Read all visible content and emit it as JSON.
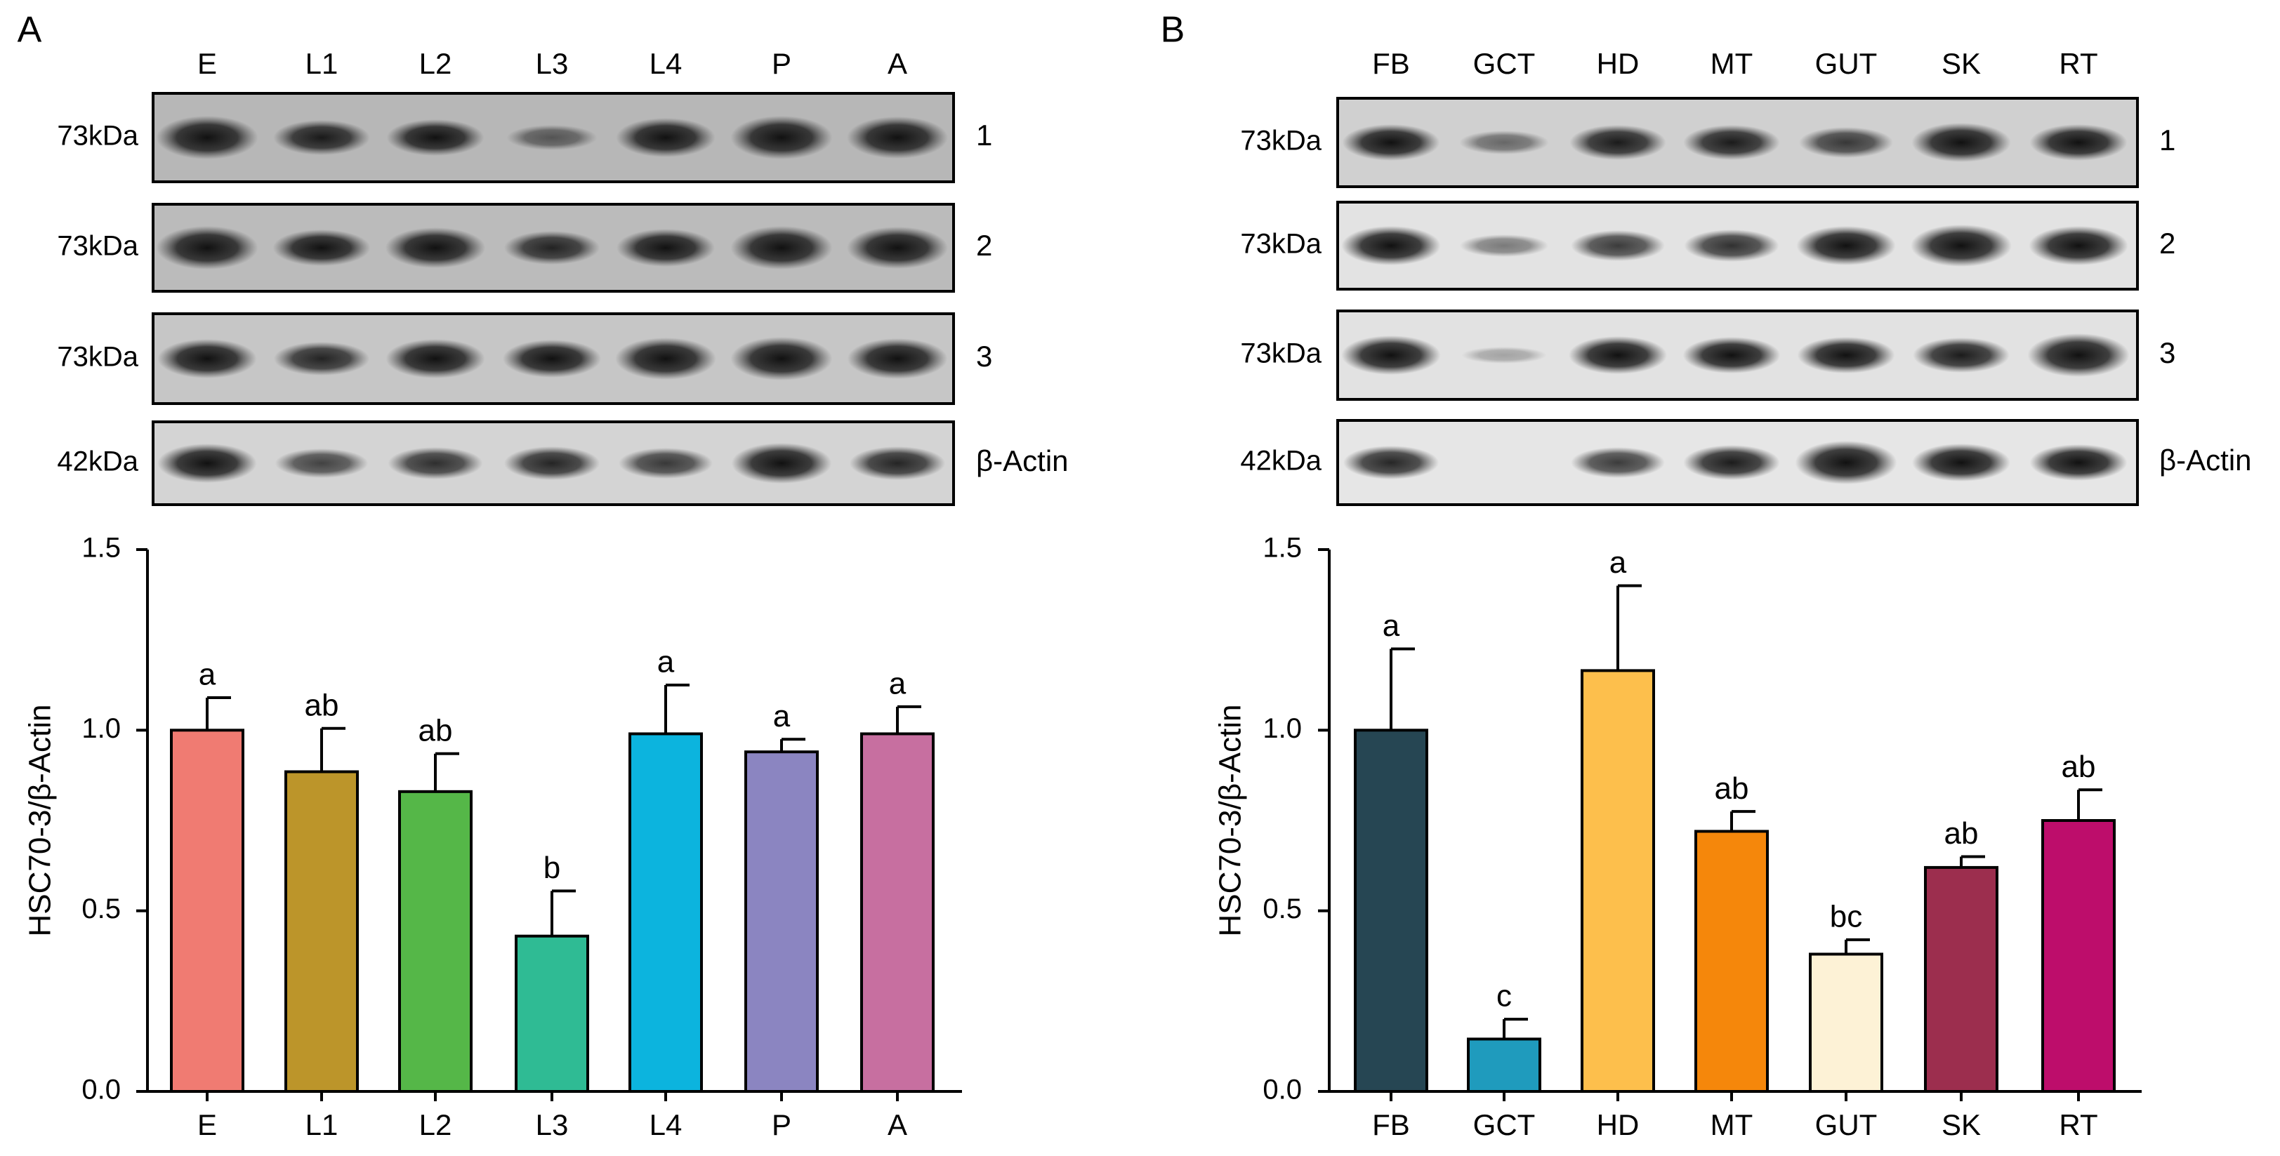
{
  "panels": [
    {
      "letter": "A",
      "lanes": [
        "E",
        "L1",
        "L2",
        "L3",
        "L4",
        "P",
        "A"
      ],
      "blots": [
        {
          "size": "73kDa",
          "label": "1",
          "intensity": [
            1.0,
            0.7,
            0.75,
            0.35,
            0.85,
            1.0,
            0.95
          ]
        },
        {
          "size": "73kDa",
          "label": "2",
          "intensity": [
            1.0,
            0.75,
            0.9,
            0.65,
            0.8,
            1.0,
            0.95
          ]
        },
        {
          "size": "73kDa",
          "label": "3",
          "intensity": [
            0.85,
            0.65,
            0.85,
            0.8,
            0.95,
            1.0,
            0.9
          ]
        },
        {
          "size": "42kDa",
          "label": "β-Actin",
          "intensity": [
            0.85,
            0.5,
            0.6,
            0.65,
            0.55,
            0.9,
            0.65
          ]
        }
      ]
    },
    {
      "letter": "B",
      "lanes": [
        "FB",
        "GCT",
        "HD",
        "MT",
        "GUT",
        "SK",
        "RT"
      ],
      "blots": [
        {
          "size": "73kDa",
          "label": "1",
          "intensity": [
            0.75,
            0.3,
            0.7,
            0.7,
            0.55,
            0.85,
            0.75
          ]
        },
        {
          "size": "73kDa",
          "label": "2",
          "intensity": [
            0.85,
            0.25,
            0.55,
            0.6,
            0.85,
            0.95,
            0.85
          ]
        },
        {
          "size": "73kDa",
          "label": "3",
          "intensity": [
            0.85,
            0.05,
            0.8,
            0.75,
            0.75,
            0.7,
            1.0
          ]
        },
        {
          "size": "42kDa",
          "label": "β-Actin",
          "intensity": [
            0.65,
            0.0,
            0.55,
            0.7,
            1.0,
            0.8,
            0.75
          ]
        }
      ]
    }
  ],
  "chart_data": [
    {
      "type": "bar",
      "categories": [
        "E",
        "L1",
        "L2",
        "L3",
        "L4",
        "P",
        "A"
      ],
      "values": [
        1.0,
        0.885,
        0.83,
        0.43,
        0.99,
        0.94,
        0.99
      ],
      "errors": [
        0.09,
        0.12,
        0.105,
        0.125,
        0.135,
        0.035,
        0.075
      ],
      "significance": [
        "a",
        "ab",
        "ab",
        "b",
        "a",
        "a",
        "a"
      ],
      "colors": [
        "#f07b72",
        "#bc952a",
        "#55b748",
        "#2fbb94",
        "#0cb4de",
        "#8b85c1",
        "#c76fa0"
      ],
      "ylabel": "HSC70-3/β-Actin",
      "ylim": [
        0,
        1.5
      ],
      "yticks": [
        "0.0",
        "0.5",
        "1.0",
        "1.5"
      ]
    },
    {
      "type": "bar",
      "categories": [
        "FB",
        "GCT",
        "HD",
        "MT",
        "GUT",
        "SK",
        "RT"
      ],
      "values": [
        1.0,
        0.145,
        1.165,
        0.72,
        0.38,
        0.62,
        0.75
      ],
      "errors": [
        0.225,
        0.055,
        0.235,
        0.055,
        0.04,
        0.03,
        0.085
      ],
      "significance": [
        "a",
        "c",
        "a",
        "ab",
        "bc",
        "ab",
        "ab"
      ],
      "colors": [
        "#264653",
        "#1f9bbd",
        "#fdbf4c",
        "#f5870b",
        "#fdf2d6",
        "#9c2e4e",
        "#bd0d6b"
      ],
      "ylabel": "HSC70-3/β-Actin",
      "ylim": [
        0,
        1.5
      ],
      "yticks": [
        "0.0",
        "0.5",
        "1.0",
        "1.5"
      ]
    }
  ]
}
